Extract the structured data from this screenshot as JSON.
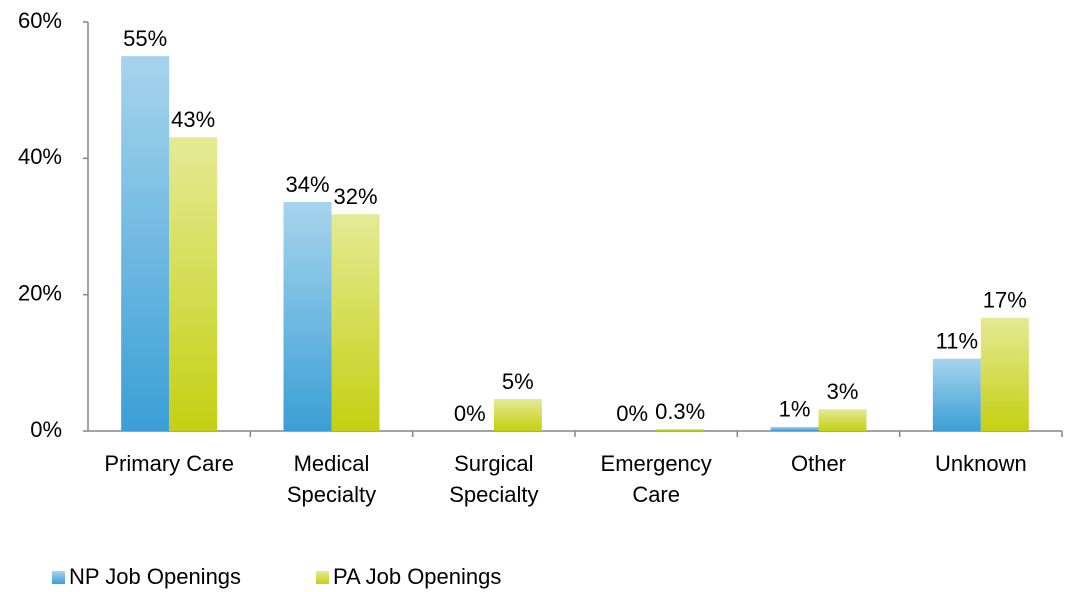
{
  "chart_data": {
    "type": "bar",
    "categories": [
      "Primary Care",
      "Medical\nSpecialty",
      "Surgical\nSpecialty",
      "Emergency\nCare",
      "Other",
      "Unknown"
    ],
    "series": [
      {
        "name": "NP Job Openings",
        "color": "#3a9fd6",
        "values": [
          55,
          33.6,
          0,
          0,
          0.6,
          10.6
        ],
        "value_labels": [
          "55%",
          "34%",
          "0%",
          "0%",
          "1%",
          "11%"
        ]
      },
      {
        "name": "PA Job Openings",
        "color": "#c4d012",
        "values": [
          43.1,
          31.8,
          4.7,
          0.3,
          3.2,
          16.6
        ],
        "value_labels": [
          "43%",
          "32%",
          "5%",
          "0.3%",
          "3%",
          "17%"
        ]
      }
    ],
    "ylim": [
      0,
      60
    ],
    "yticks": [
      {
        "value": 0,
        "label": "0%"
      },
      {
        "value": 20,
        "label": "20%"
      },
      {
        "value": 40,
        "label": "40%"
      },
      {
        "value": 60,
        "label": "60%"
      }
    ],
    "legend": "bottom-left"
  }
}
